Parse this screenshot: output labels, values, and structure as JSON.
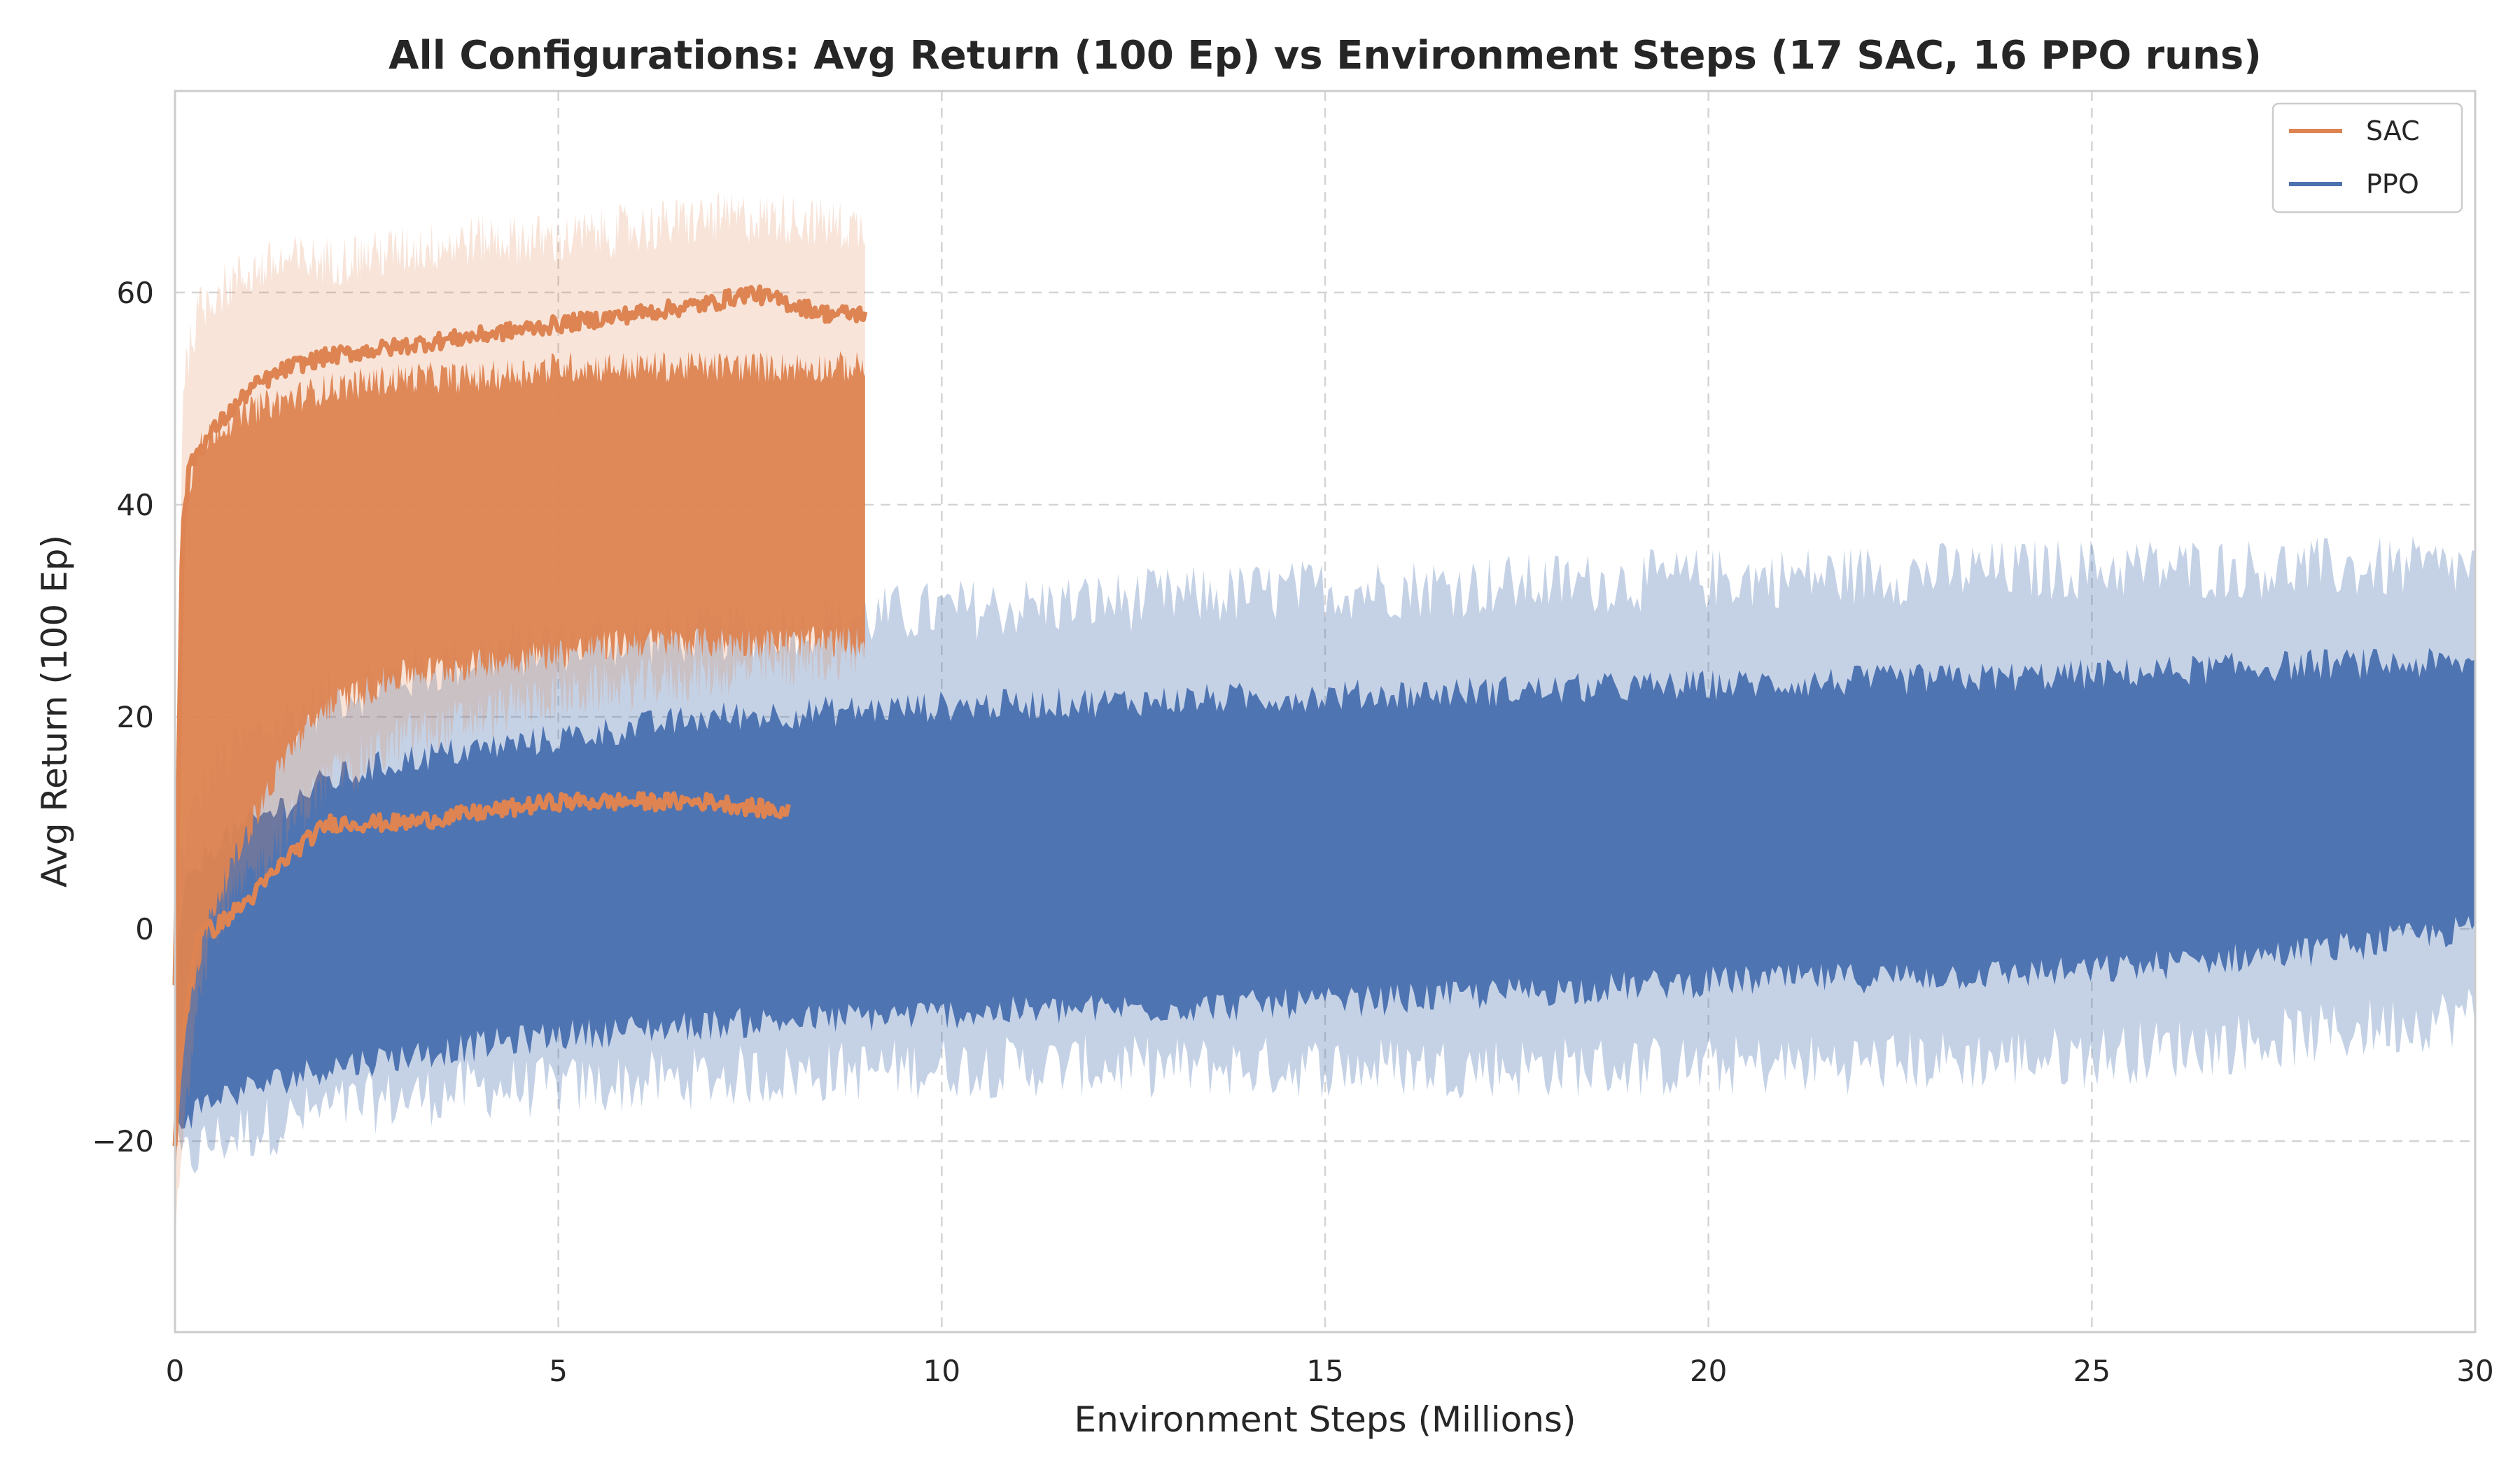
{
  "chart_data": {
    "type": "line",
    "title": "All Configurations: Avg Return (100 Ep) vs Environment Steps (17 SAC, 16 PPO runs)",
    "xlabel": "Environment Steps (Millions)",
    "ylabel": "Avg Return (100 Ep)",
    "xlim": [
      0,
      30
    ],
    "ylim": [
      -38,
      79
    ],
    "xticks": [
      0,
      5,
      10,
      15,
      20,
      25,
      30
    ],
    "yticks": [
      -20,
      0,
      20,
      40,
      60
    ],
    "ytick_labels": [
      "−20",
      "0",
      "20",
      "40",
      "60"
    ],
    "grid": true,
    "legend_position": "top-right",
    "legend": [
      {
        "name": "SAC",
        "color": "#dd8452"
      },
      {
        "name": "PPO",
        "color": "#4c72b0"
      }
    ],
    "series": [
      {
        "name": "SAC",
        "color": "#dd8452",
        "runs": 17,
        "x": [
          0.0,
          0.1,
          0.3,
          0.5,
          1.0,
          1.5,
          2.0,
          3.0,
          4.0,
          5.0,
          6.0,
          7.0,
          8.0,
          9.0
        ],
        "band_upper": [
          -10,
          52,
          58,
          60,
          62,
          63,
          63,
          64,
          65,
          65,
          66,
          67,
          67,
          66
        ],
        "band_lower": [
          -30,
          -20,
          -5,
          0,
          5,
          10,
          14,
          18,
          20,
          22,
          23,
          24,
          25,
          26
        ],
        "dense_upper": [
          -5,
          40,
          45,
          47,
          49,
          50,
          51,
          52,
          52,
          53,
          53,
          53,
          53,
          53
        ],
        "dense_lower": [
          -25,
          -10,
          -3,
          2,
          10,
          17,
          21,
          24,
          25,
          26,
          27,
          27,
          27,
          27
        ],
        "best_run_x": [
          0.0,
          0.1,
          0.2,
          0.5,
          1.0,
          1.5,
          2.0,
          3.0,
          4.0,
          5.0,
          6.0,
          7.0,
          7.5,
          8.0,
          8.5,
          9.0
        ],
        "best_run": [
          -5,
          38,
          44,
          47,
          51,
          53,
          54,
          55,
          56,
          57,
          58,
          59,
          60,
          59,
          58,
          58
        ],
        "low_run_x": [
          0.0,
          0.1,
          0.2,
          0.3,
          0.5,
          1.0,
          1.5,
          2.0,
          3.0,
          4.0,
          5.0,
          6.0,
          7.0,
          8.0
        ],
        "low_run": [
          -20,
          -10,
          -5,
          0,
          0,
          3,
          7,
          10,
          10,
          11,
          12,
          12,
          12,
          11
        ]
      },
      {
        "name": "PPO",
        "color": "#4c72b0",
        "runs": 16,
        "x": [
          0.0,
          0.1,
          0.3,
          0.5,
          1.0,
          1.5,
          2.0,
          3.0,
          4.0,
          5.0,
          7.0,
          10.0,
          15.0,
          20.0,
          25.0,
          28.0,
          30.0
        ],
        "band_upper": [
          0,
          8,
          12,
          15,
          18,
          20,
          22,
          24,
          26,
          27,
          28,
          30,
          32,
          33,
          34,
          34,
          34
        ],
        "band_lower": [
          -22,
          -22,
          -21,
          -20,
          -19,
          -18,
          -17,
          -16,
          -15,
          -15,
          -14,
          -13,
          -13,
          -13,
          -12,
          -10,
          -8
        ],
        "dense_upper": [
          -5,
          3,
          6,
          8,
          10,
          12,
          14,
          16,
          17,
          18,
          20,
          21,
          22,
          23,
          24,
          25,
          25
        ],
        "dense_lower": [
          -18,
          -18,
          -17,
          -16,
          -15,
          -14,
          -13,
          -12,
          -11,
          -10,
          -9,
          -8,
          -7,
          -5,
          -4,
          -2,
          0
        ]
      }
    ]
  }
}
